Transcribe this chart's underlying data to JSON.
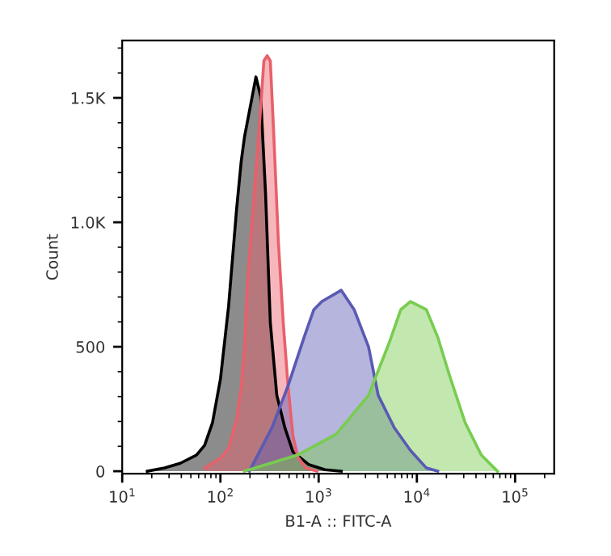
{
  "chart_data": {
    "type": "area",
    "xlabel": "B1-A :: FITC-A",
    "ylabel": "Count",
    "log": "x",
    "xlim": [
      10,
      250000
    ],
    "ylim": [
      -10,
      1730
    ],
    "xticks": [
      {
        "value": 10,
        "label": "10$^{1}$"
      },
      {
        "value": 100,
        "label": "10$^{2}$"
      },
      {
        "value": 1000,
        "label": "10$^{3}$"
      },
      {
        "value": 10000,
        "label": "10$^{4}$"
      },
      {
        "value": 100000,
        "label": "10$^{5}$"
      }
    ],
    "yticks": [
      {
        "value": 0,
        "label": "0"
      },
      {
        "value": 500,
        "label": "500"
      },
      {
        "value": 1000,
        "label": "1.0K"
      },
      {
        "value": 1500,
        "label": "1.5K"
      }
    ],
    "grid": false,
    "legend": false,
    "series": [
      {
        "color": "#000000",
        "x": [
          18,
          27,
          39,
          57,
          69,
          83,
          100,
          121,
          146,
          163,
          176,
          230,
          257,
          288,
          322,
          375,
          453,
          547,
          798,
          1160,
          1700
        ],
        "values": [
          0,
          13,
          32,
          65,
          104,
          195,
          370,
          662,
          1052,
          1247,
          1344,
          1584,
          1506,
          1117,
          597,
          305,
          175,
          78,
          26,
          6,
          0
        ]
      },
      {
        "color": "#e8606a",
        "x": [
          69,
          100,
          121,
          146,
          163,
          176,
          190,
          221,
          257,
          277,
          299,
          322,
          347,
          389,
          436,
          489,
          547,
          612,
          740,
          962
        ],
        "values": [
          13,
          52,
          91,
          208,
          338,
          500,
          779,
          1117,
          1461,
          1649,
          1669,
          1649,
          1377,
          922,
          597,
          338,
          143,
          58,
          13,
          0
        ]
      },
      {
        "color": "#5a5ab4",
        "x": [
          197,
          335,
          489,
          712,
          893,
          1080,
          1700,
          2300,
          3220,
          4040,
          5890,
          8590,
          12500,
          16300
        ],
        "values": [
          0,
          175,
          344,
          539,
          649,
          682,
          727,
          649,
          500,
          305,
          175,
          84,
          13,
          0
        ]
      },
      {
        "color": "#78cc50",
        "x": [
          176,
          612,
          1514,
          3220,
          5260,
          6860,
          8590,
          10000,
          12500,
          16300,
          21300,
          31000,
          45300,
          66100
        ],
        "values": [
          0,
          65,
          149,
          305,
          519,
          649,
          682,
          669,
          649,
          539,
          390,
          195,
          65,
          0
        ]
      }
    ]
  }
}
